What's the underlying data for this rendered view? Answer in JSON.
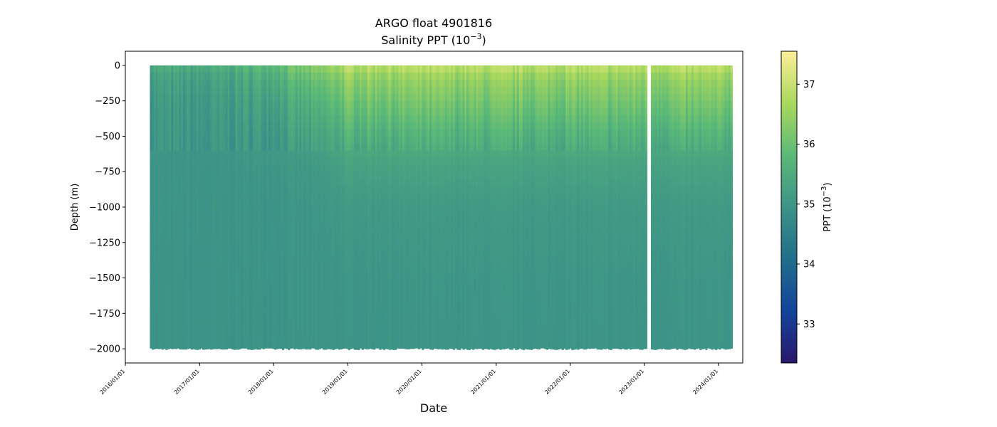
{
  "chart_data": {
    "type": "heatmap",
    "title": "ARGO float 4901816",
    "subtitle": "Salinity PPT (10",
    "subtitle_exponent": "−3",
    "subtitle_suffix": ")",
    "xlabel": "Date",
    "ylabel": "Depth (m)",
    "colorbar_label": "PPT (10",
    "colorbar_label_exponent": "−3",
    "colorbar_label_suffix": ")",
    "colormap": "haline",
    "colorbar_colors": [
      "#2a186c",
      "#14439c",
      "#206e8b",
      "#3c9387",
      "#5ab978",
      "#aad85c",
      "#fdef9a"
    ],
    "clim": [
      32.35,
      37.55
    ],
    "colorbar_ticks": [
      33,
      34,
      35,
      36,
      37
    ],
    "xlim": [
      "2016-01-01",
      "2024-04-30"
    ],
    "ylim": [
      -2100,
      100
    ],
    "x_ticks": [
      "2016/01/01",
      "2017/01/01",
      "2018/01/01",
      "2019/01/01",
      "2020/01/01",
      "2021/01/01",
      "2022/01/01",
      "2023/01/01",
      "2024/01/01"
    ],
    "y_ticks": [
      0,
      -250,
      -500,
      -750,
      -1000,
      -1250,
      -1500,
      -1750,
      -2000
    ],
    "y_tick_labels": [
      "0",
      "−250",
      "−500",
      "−750",
      "−1000",
      "−1250",
      "−1500",
      "−1750",
      "−2000"
    ],
    "data_start": "2016-05-01",
    "data_end": "2024-03-10",
    "gap": [
      "2023-01-10",
      "2023-01-30"
    ],
    "depth_range": [
      0,
      -2000
    ],
    "profile_model": {
      "depth_m": [
        0,
        -50,
        -100,
        -200,
        -300,
        -500,
        -700,
        -1000,
        -1500,
        -2000
      ],
      "salinity_early_2016": [
        35.5,
        35.3,
        35.2,
        35.1,
        35.05,
        35.0,
        34.98,
        34.97,
        34.96,
        34.95
      ],
      "salinity_2017_2018": [
        36.3,
        36.1,
        35.9,
        35.7,
        35.5,
        35.25,
        35.1,
        35.0,
        34.98,
        34.97
      ],
      "salinity_2019_2024": [
        36.9,
        36.6,
        36.4,
        36.2,
        36.0,
        35.6,
        35.3,
        35.1,
        35.0,
        34.98
      ]
    }
  }
}
